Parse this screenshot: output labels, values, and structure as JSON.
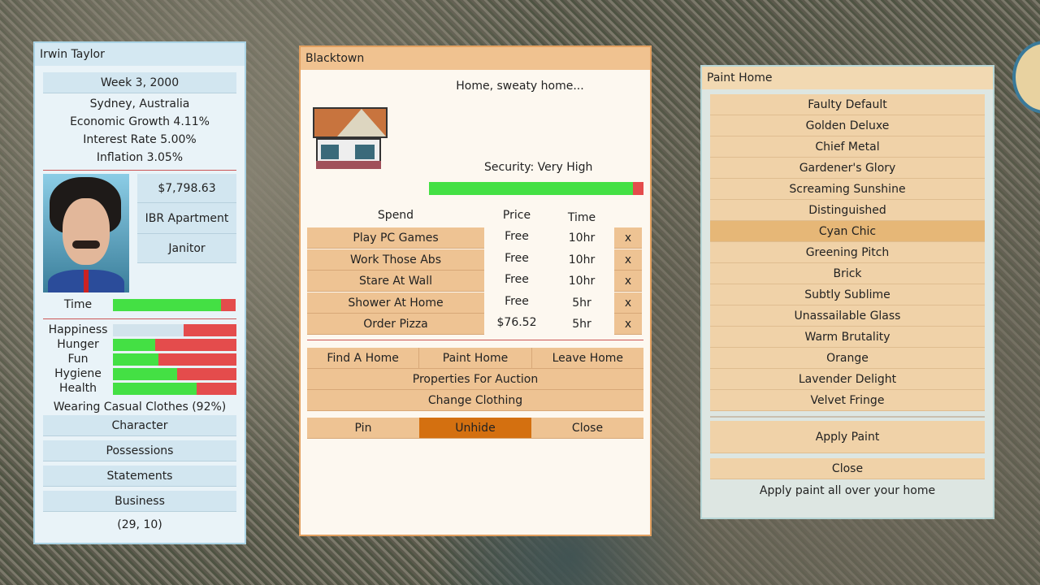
{
  "character_panel": {
    "title": "Irwin Taylor",
    "date": "Week 3, 2000",
    "location": "Sydney, Australia",
    "economic_growth": "Economic Growth 4.11%",
    "interest_rate": "Interest Rate 5.00%",
    "inflation": "Inflation 3.05%",
    "money": "$7,798.63",
    "home": "IBR Apartment",
    "job": "Janitor",
    "time_label": "Time",
    "time_fraction": 0.88,
    "stats": [
      {
        "label": "Happiness",
        "fraction": 0.57,
        "color": "#d2e3ec"
      },
      {
        "label": "Hunger",
        "fraction": 0.34,
        "color": "#44e044"
      },
      {
        "label": "Fun",
        "fraction": 0.37,
        "color": "#44e044"
      },
      {
        "label": "Hygiene",
        "fraction": 0.52,
        "color": "#44e044"
      },
      {
        "label": "Health",
        "fraction": 0.68,
        "color": "#44e044"
      }
    ],
    "clothing": "Wearing Casual Clothes (92%)",
    "buttons": [
      "Character",
      "Possessions",
      "Statements",
      "Business"
    ],
    "coords": "(29, 10)"
  },
  "home_panel": {
    "title": "Blacktown",
    "message": "Home, sweaty home...",
    "security": "Security: Very High",
    "security_fraction": 0.95,
    "headers": {
      "spend": "Spend",
      "price": "Price",
      "time": "Time"
    },
    "rows": [
      {
        "action": "Play PC Games",
        "price": "Free",
        "time": "10hr",
        "remove": "x"
      },
      {
        "action": "Work Those Abs",
        "price": "Free",
        "time": "10hr",
        "remove": "x"
      },
      {
        "action": "Stare At Wall",
        "price": "Free",
        "time": "10hr",
        "remove": "x"
      },
      {
        "action": "Shower At Home",
        "price": "Free",
        "time": "5hr",
        "remove": "x"
      },
      {
        "action": "Order Pizza",
        "price": "$76.52",
        "time": "5hr",
        "remove": "x"
      }
    ],
    "find_home": "Find A Home",
    "paint_home": "Paint Home",
    "leave_home": "Leave Home",
    "auction": "Properties For Auction",
    "clothing": "Change Clothing",
    "pin": "Pin",
    "unhide": "Unhide",
    "close": "Close"
  },
  "paint_panel": {
    "title": "Paint Home",
    "options": [
      "Faulty Default",
      "Golden Deluxe",
      "Chief Metal",
      "Gardener's Glory",
      "Screaming Sunshine",
      "Distinguished",
      "Cyan Chic",
      "Greening Pitch",
      "Brick",
      "Subtly Sublime",
      "Unassailable Glass",
      "Warm Brutality",
      "Orange",
      "Lavender Delight",
      "Velvet Fringe"
    ],
    "selected": "Cyan Chic",
    "apply": "Apply Paint",
    "close": "Close",
    "hint": "Apply paint all over your home"
  },
  "colors": {
    "bar_green": "#44e044",
    "bar_red": "#e44c4c",
    "accent_orange": "#d47010"
  }
}
